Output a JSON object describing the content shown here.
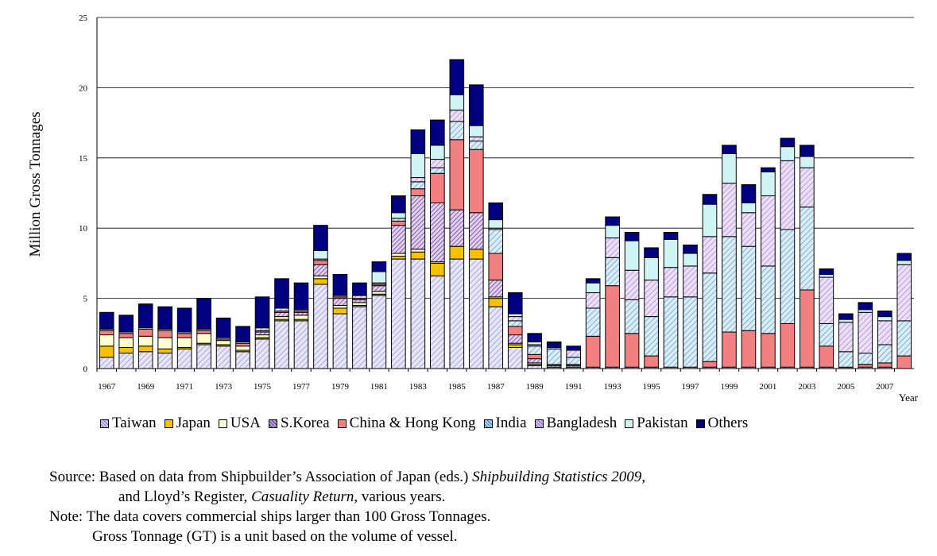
{
  "chart_data": {
    "type": "bar",
    "stacked": true,
    "title": "",
    "xlabel": "Year",
    "ylabel": "Million Gross Tonnages",
    "ylim": [
      0,
      25
    ],
    "yticks": [
      0,
      5,
      10,
      15,
      20,
      25
    ],
    "grid": "horizontal",
    "legend_position": "bottom",
    "categories": [
      "1967",
      "1968",
      "1969",
      "1970",
      "1971",
      "1972",
      "1973",
      "1974",
      "1975",
      "1976",
      "1977",
      "1978",
      "1979",
      "1980",
      "1981",
      "1982",
      "1983",
      "1984",
      "1985",
      "1986",
      "1987",
      "1988",
      "1989",
      "1990",
      "1991",
      "1992",
      "1993",
      "1994",
      "1995",
      "1996",
      "1997",
      "1998",
      "1999",
      "2000",
      "2001",
      "2002",
      "2003",
      "2004",
      "2005",
      "2006",
      "2007",
      "2008"
    ],
    "tick_labels": [
      "1967",
      "1969",
      "1971",
      "1973",
      "1975",
      "1977",
      "1979",
      "1981",
      "1983",
      "1985",
      "1987",
      "1989",
      "1991",
      "1993",
      "1995",
      "1997",
      "1999",
      "2001",
      "2003",
      "2005",
      "2007"
    ],
    "series": [
      {
        "name": "Taiwan",
        "color": "#c8c8f0",
        "pattern": "hatch-light",
        "values": [
          0.8,
          1.1,
          1.2,
          1.1,
          1.4,
          1.7,
          1.6,
          1.2,
          2.1,
          3.4,
          3.4,
          6.0,
          3.9,
          4.4,
          5.2,
          7.8,
          7.8,
          6.6,
          7.8,
          7.8,
          4.4,
          1.5,
          0.2,
          0.1,
          0.1,
          0.1,
          0.1,
          0.1,
          0.1,
          0.1,
          0.1,
          0.1,
          0.1,
          0.1,
          0.1,
          0.1,
          0.1,
          0.1,
          0,
          0.1,
          0.1,
          0
        ]
      },
      {
        "name": "Japan",
        "color": "#f5c200",
        "pattern": "solid",
        "values": [
          0.8,
          0.4,
          0.4,
          0.3,
          0.1,
          0.1,
          0.1,
          0.1,
          0.1,
          0.1,
          0.1,
          0.4,
          0.4,
          0.1,
          0.1,
          0.2,
          0.5,
          0.9,
          0.9,
          0.7,
          0.6,
          0.2,
          0.1,
          0,
          0,
          0,
          0,
          0,
          0,
          0,
          0,
          0,
          0,
          0,
          0,
          0,
          0,
          0,
          0,
          0,
          0,
          0
        ]
      },
      {
        "name": "USA",
        "color": "#ffffd0",
        "pattern": "solid",
        "values": [
          0.8,
          0.7,
          0.7,
          0.8,
          0.7,
          0.7,
          0.3,
          0.3,
          0.2,
          0.2,
          0.3,
          0.2,
          0.2,
          0.2,
          0.2,
          0.2,
          0.2,
          0.1,
          0,
          0,
          0.1,
          0.1,
          0.1,
          0,
          0,
          0,
          0,
          0,
          0,
          0,
          0,
          0,
          0,
          0,
          0,
          0,
          0,
          0,
          0,
          0,
          0,
          0
        ]
      },
      {
        "name": "S.Korea",
        "color": "#b89ad8",
        "pattern": "hatch-dense",
        "values": [
          0,
          0,
          0,
          0,
          0,
          0,
          0,
          0,
          0.2,
          0.3,
          0.2,
          0.8,
          0.5,
          0.2,
          0.4,
          2.0,
          3.8,
          4.2,
          2.6,
          2.6,
          1.2,
          0.6,
          0.3,
          0.1,
          0.1,
          0,
          0,
          0,
          0,
          0,
          0,
          0,
          0,
          0,
          0,
          0,
          0,
          0,
          0,
          0,
          0,
          0
        ]
      },
      {
        "name": "China & Hong Kong",
        "color": "#f28080",
        "pattern": "solid",
        "values": [
          0.3,
          0.3,
          0.5,
          0.5,
          0.3,
          0.2,
          0.1,
          0.2,
          0.1,
          0.1,
          0.1,
          0.3,
          0.1,
          0.1,
          0.1,
          0.3,
          0.5,
          2.1,
          5.0,
          4.5,
          1.9,
          0.6,
          0.3,
          0.1,
          0.1,
          2.2,
          5.8,
          2.4,
          0.8,
          0,
          0,
          0.4,
          2.5,
          2.6,
          2.4,
          3.1,
          5.5,
          1.5,
          0.1,
          0.2,
          0.3,
          0.9
        ]
      },
      {
        "name": "India",
        "color": "#a8d8f0",
        "pattern": "hatch-blue",
        "values": [
          0,
          0,
          0,
          0,
          0,
          0,
          0,
          0,
          0.2,
          0.2,
          0.1,
          0.1,
          0.1,
          0.2,
          0.1,
          0.2,
          0.5,
          0.4,
          1.3,
          0.6,
          1.7,
          0.4,
          0.6,
          1.1,
          0.5,
          2.0,
          2.0,
          2.4,
          2.8,
          5.0,
          5.0,
          6.3,
          6.8,
          6.0,
          4.8,
          6.7,
          5.9,
          1.6,
          1.1,
          0.8,
          1.3,
          2.5
        ]
      },
      {
        "name": "Bangladesh",
        "color": "#d8b8f0",
        "pattern": "hatch-light",
        "values": [
          0,
          0,
          0,
          0,
          0,
          0,
          0,
          0,
          0,
          0,
          0,
          0,
          0,
          0,
          0,
          0,
          0.3,
          0.6,
          0.8,
          0.3,
          0.1,
          0.3,
          0.1,
          0.1,
          0.5,
          1.1,
          1.4,
          2.1,
          2.6,
          2.1,
          2.2,
          2.6,
          3.8,
          2.4,
          5.0,
          4.9,
          2.8,
          3.3,
          2.1,
          2.9,
          1.7,
          4.0
        ]
      },
      {
        "name": "Pakistan",
        "color": "#d0f4f4",
        "pattern": "solid",
        "values": [
          0.1,
          0.1,
          0.1,
          0.1,
          0.1,
          0.1,
          0.1,
          0.1,
          0,
          0,
          0,
          0.6,
          0,
          0,
          0.8,
          0.4,
          1.7,
          1.0,
          1.1,
          0.8,
          0.6,
          0.2,
          0.2,
          0,
          0,
          0.7,
          0.9,
          2.1,
          1.6,
          2.0,
          0.9,
          2.3,
          2.1,
          0.7,
          1.7,
          1.0,
          0.8,
          0.2,
          0.2,
          0.2,
          0.3,
          0.3
        ]
      },
      {
        "name": "Others",
        "color": "#000080",
        "pattern": "solid",
        "values": [
          1.2,
          1.2,
          1.7,
          1.6,
          1.7,
          2.2,
          1.4,
          1.1,
          2.2,
          2.1,
          1.9,
          1.8,
          1.5,
          0.9,
          0.7,
          1.2,
          1.7,
          1.8,
          2.5,
          2.9,
          1.2,
          1.5,
          0.6,
          0.4,
          0.3,
          0.3,
          0.6,
          0.6,
          0.7,
          0.5,
          0.6,
          0.7,
          0.6,
          1.3,
          0.3,
          0.6,
          0.8,
          0.4,
          0.4,
          0.5,
          0.4,
          0.5
        ]
      }
    ]
  },
  "legend": {
    "items": [
      {
        "label": "Taiwan",
        "color": "#c8c8f0"
      },
      {
        "label": "Japan",
        "color": "#f5c200"
      },
      {
        "label": "USA",
        "color": "#ffffd0"
      },
      {
        "label": "S.Korea",
        "color": "#b89ad8"
      },
      {
        "label": "China & Hong Kong",
        "color": "#f28080"
      },
      {
        "label": "India",
        "color": "#a8d8f0"
      },
      {
        "label": "Bangladesh",
        "color": "#d8b8f0"
      },
      {
        "label": "Pakistan",
        "color": "#d0f4f4"
      },
      {
        "label": "Others",
        "color": "#000080"
      }
    ]
  },
  "notes": {
    "source_prefix": "Source: Based on data from Shipbuilder’s Association of Japan (eds.) ",
    "source_italic1": "Shipbuilding Statistics 2009",
    "source_comma": ",",
    "source_line2_prefix": "and Lloyd’s Register, ",
    "source_italic2": "Casuality Return",
    "source_line2_suffix": ", various years.",
    "note_line1": "Note: The data covers commercial ships larger than 100 Gross Tonnages.",
    "note_line2": "Gross Tonnage (GT) is a unit based on the volume of vessel."
  }
}
